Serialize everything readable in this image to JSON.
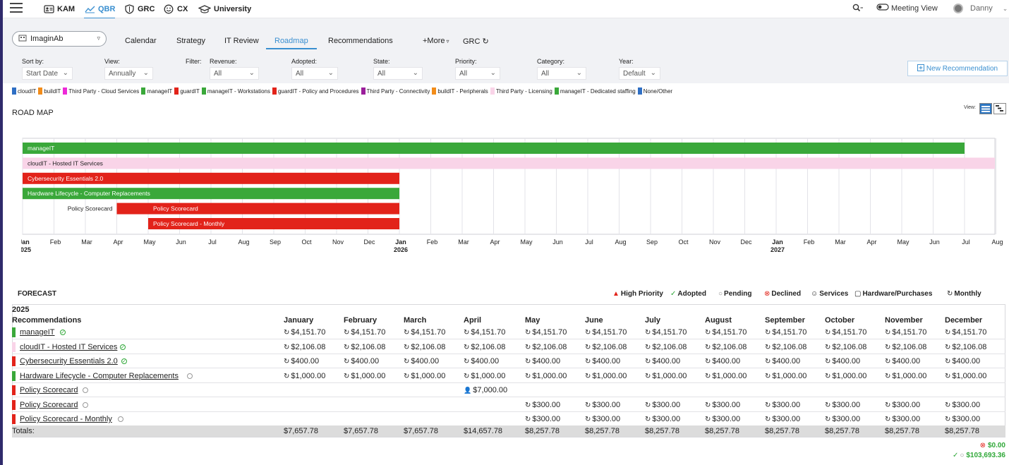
{
  "nav": {
    "items": [
      {
        "label": "KAM",
        "icon": "id-card-icon"
      },
      {
        "label": "QBR",
        "icon": "chart-line-icon"
      },
      {
        "label": "GRC",
        "icon": "shield-icon"
      },
      {
        "label": "CX",
        "icon": "smiley-icon"
      },
      {
        "label": "University",
        "icon": "graduation-cap-icon"
      }
    ],
    "active": "QBR",
    "meeting_view": "Meeting View",
    "user": "Danny"
  },
  "client": {
    "name": "ImaginAb"
  },
  "tabs": [
    "Calendar",
    "Strategy",
    "IT Review",
    "Roadmap",
    "Recommendations",
    "+More",
    "GRC"
  ],
  "active_tab": "Roadmap",
  "filters": {
    "sort_by": {
      "label": "Sort by:",
      "value": "Start Date"
    },
    "view": {
      "label": "View:",
      "value": "Annually"
    },
    "filter_label": "Filter:",
    "revenue": {
      "label": "Revenue:",
      "value": "All"
    },
    "adopted": {
      "label": "Adopted:",
      "value": "All"
    },
    "state": {
      "label": "State:",
      "value": "All"
    },
    "priority": {
      "label": "Priority:",
      "value": "All"
    },
    "category": {
      "label": "Category:",
      "value": "All"
    },
    "year": {
      "label": "Year:",
      "value": "Default"
    }
  },
  "new_recommendation": "New Recommendation",
  "legend": [
    {
      "label": "cloudIT",
      "color": "#2f6fc4"
    },
    {
      "label": "buildIT",
      "color": "#f28c1a"
    },
    {
      "label": "Third Party - Cloud Services",
      "color": "#ee2ad8"
    },
    {
      "label": "manageIT",
      "color": "#3aa83a"
    },
    {
      "label": "guardIT",
      "color": "#e2231a"
    },
    {
      "label": "manageIT - Workstations",
      "color": "#3aa83a"
    },
    {
      "label": "guardIT - Policy and Procedures",
      "color": "#e2231a"
    },
    {
      "label": "Third Party - Connectivity",
      "color": "#9b1f9b"
    },
    {
      "label": "buildIT - Peripherals",
      "color": "#f28c1a"
    },
    {
      "label": "Third Party - Licensing",
      "color": "#f9d4e8"
    },
    {
      "label": "manageIT - Dedicated staffing",
      "color": "#3aa83a"
    },
    {
      "label": "None/Other",
      "color": "#2f6fc4"
    }
  ],
  "roadmap": {
    "title": "ROAD MAP",
    "view_label": "View:",
    "months": [
      "Jan",
      "Feb",
      "Mar",
      "Apr",
      "May",
      "Jun",
      "Jul",
      "Aug",
      "Sep",
      "Oct",
      "Nov",
      "Dec",
      "Jan",
      "Feb",
      "Mar",
      "Apr",
      "May",
      "Jun",
      "Jul",
      "Aug",
      "Sep",
      "Oct",
      "Nov",
      "Dec",
      "Jan",
      "Feb",
      "Mar",
      "Apr",
      "May",
      "Jun",
      "Jul",
      "Aug"
    ],
    "years": [
      {
        "label": "2025",
        "month_index": 0
      },
      {
        "label": "2026",
        "month_index": 12
      },
      {
        "label": "2027",
        "month_index": 24
      }
    ],
    "bars": [
      {
        "label": "manageIT",
        "start": "2025-01",
        "end": "2027-07",
        "color": "#3aa83a",
        "text_color": "#ffffff"
      },
      {
        "label": "cloudIT - Hosted IT Services",
        "start": "2025-01",
        "end": "2027-08",
        "color": "#f9d4e8",
        "text_color": "#222222"
      },
      {
        "label": "Cybersecurity Essentials 2.0",
        "start": "2025-01",
        "end": "2026-01",
        "color": "#e2231a",
        "text_color": "#ffffff"
      },
      {
        "label": "Hardware Lifecycle - Computer Replacements",
        "start": "2025-01",
        "end": "2026-01",
        "color": "#3aa83a",
        "text_color": "#ffffff"
      },
      {
        "label": "Policy Scorecard",
        "start": "2025-04",
        "end": "2025-05",
        "color": "#e2231a",
        "text_color": "#222222",
        "label_outside": true
      },
      {
        "label": "Policy Scorecard",
        "start": "2025-05",
        "end": "2026-01",
        "color": "#e2231a",
        "text_color": "#ffffff"
      },
      {
        "label": "Policy Scorecard - Monthly",
        "start": "2025-05",
        "end": "2026-01",
        "color": "#e2231a",
        "text_color": "#ffffff"
      }
    ]
  },
  "forecast": {
    "title": "FORECAST",
    "legend": {
      "high_priority": "High Priority",
      "adopted": "Adopted",
      "pending": "Pending",
      "declined": "Declined",
      "services": "Services",
      "hardware": "Hardware/Purchases",
      "monthly": "Monthly"
    },
    "year": "2025",
    "rec_header": "Recommendations",
    "months": [
      "January",
      "February",
      "March",
      "April",
      "May",
      "June",
      "July",
      "August",
      "September",
      "October",
      "November",
      "December"
    ],
    "rows": [
      {
        "name": "manageIT",
        "color": "#3aa83a",
        "status": "adopted",
        "values": [
          "$4,151.70",
          "$4,151.70",
          "$4,151.70",
          "$4,151.70",
          "$4,151.70",
          "$4,151.70",
          "$4,151.70",
          "$4,151.70",
          "$4,151.70",
          "$4,151.70",
          "$4,151.70",
          "$4,151.70"
        ],
        "kinds": [
          "monthly",
          "monthly",
          "monthly",
          "monthly",
          "monthly",
          "monthly",
          "monthly",
          "monthly",
          "monthly",
          "monthly",
          "monthly",
          "monthly"
        ]
      },
      {
        "name": "cloudIT - Hosted IT Services",
        "color": "#f9d4e8",
        "status": "adopted",
        "values": [
          "$2,106.08",
          "$2,106.08",
          "$2,106.08",
          "$2,106.08",
          "$2,106.08",
          "$2,106.08",
          "$2,106.08",
          "$2,106.08",
          "$2,106.08",
          "$2,106.08",
          "$2,106.08",
          "$2,106.08"
        ],
        "kinds": [
          "monthly",
          "monthly",
          "monthly",
          "monthly",
          "monthly",
          "monthly",
          "monthly",
          "monthly",
          "monthly",
          "monthly",
          "monthly",
          "monthly"
        ]
      },
      {
        "name": "Cybersecurity Essentials 2.0",
        "color": "#e2231a",
        "status": "adopted",
        "values": [
          "$400.00",
          "$400.00",
          "$400.00",
          "$400.00",
          "$400.00",
          "$400.00",
          "$400.00",
          "$400.00",
          "$400.00",
          "$400.00",
          "$400.00",
          "$400.00"
        ],
        "kinds": [
          "monthly",
          "monthly",
          "monthly",
          "monthly",
          "monthly",
          "monthly",
          "monthly",
          "monthly",
          "monthly",
          "monthly",
          "monthly",
          "monthly"
        ]
      },
      {
        "name": "Hardware Lifecycle - Computer Replacements",
        "color": "#3aa83a",
        "status": "pending",
        "values": [
          "$1,000.00",
          "$1,000.00",
          "$1,000.00",
          "$1,000.00",
          "$1,000.00",
          "$1,000.00",
          "$1,000.00",
          "$1,000.00",
          "$1,000.00",
          "$1,000.00",
          "$1,000.00",
          "$1,000.00"
        ],
        "kinds": [
          "monthly",
          "monthly",
          "monthly",
          "monthly",
          "monthly",
          "monthly",
          "monthly",
          "monthly",
          "monthly",
          "monthly",
          "monthly",
          "monthly"
        ]
      },
      {
        "name": "Policy Scorecard",
        "color": "#e2231a",
        "status": "pending",
        "values": [
          "",
          "",
          "",
          "$7,000.00",
          "",
          "",
          "",
          "",
          "",
          "",
          "",
          ""
        ],
        "kinds": [
          "",
          "",
          "",
          "services",
          "",
          "",
          "",
          "",
          "",
          "",
          "",
          ""
        ]
      },
      {
        "name": "Policy Scorecard",
        "color": "#e2231a",
        "status": "pending",
        "values": [
          "",
          "",
          "",
          "",
          "$300.00",
          "$300.00",
          "$300.00",
          "$300.00",
          "$300.00",
          "$300.00",
          "$300.00",
          "$300.00"
        ],
        "kinds": [
          "",
          "",
          "",
          "",
          "monthly",
          "monthly",
          "monthly",
          "monthly",
          "monthly",
          "monthly",
          "monthly",
          "monthly"
        ]
      },
      {
        "name": "Policy Scorecard - Monthly",
        "color": "#e2231a",
        "status": "pending",
        "values": [
          "",
          "",
          "",
          "",
          "$300.00",
          "$300.00",
          "$300.00",
          "$300.00",
          "$300.00",
          "$300.00",
          "$300.00",
          "$300.00"
        ],
        "kinds": [
          "",
          "",
          "",
          "",
          "monthly",
          "monthly",
          "monthly",
          "monthly",
          "monthly",
          "monthly",
          "monthly",
          "monthly"
        ]
      }
    ],
    "totals_label": "Totals:",
    "totals": [
      "$7,657.78",
      "$7,657.78",
      "$7,657.78",
      "$14,657.78",
      "$8,257.78",
      "$8,257.78",
      "$8,257.78",
      "$8,257.78",
      "$8,257.78",
      "$8,257.78",
      "$8,257.78",
      "$8,257.78"
    ],
    "declined_total": "$0.00",
    "adopted_pending_total": "$103,693.36"
  }
}
